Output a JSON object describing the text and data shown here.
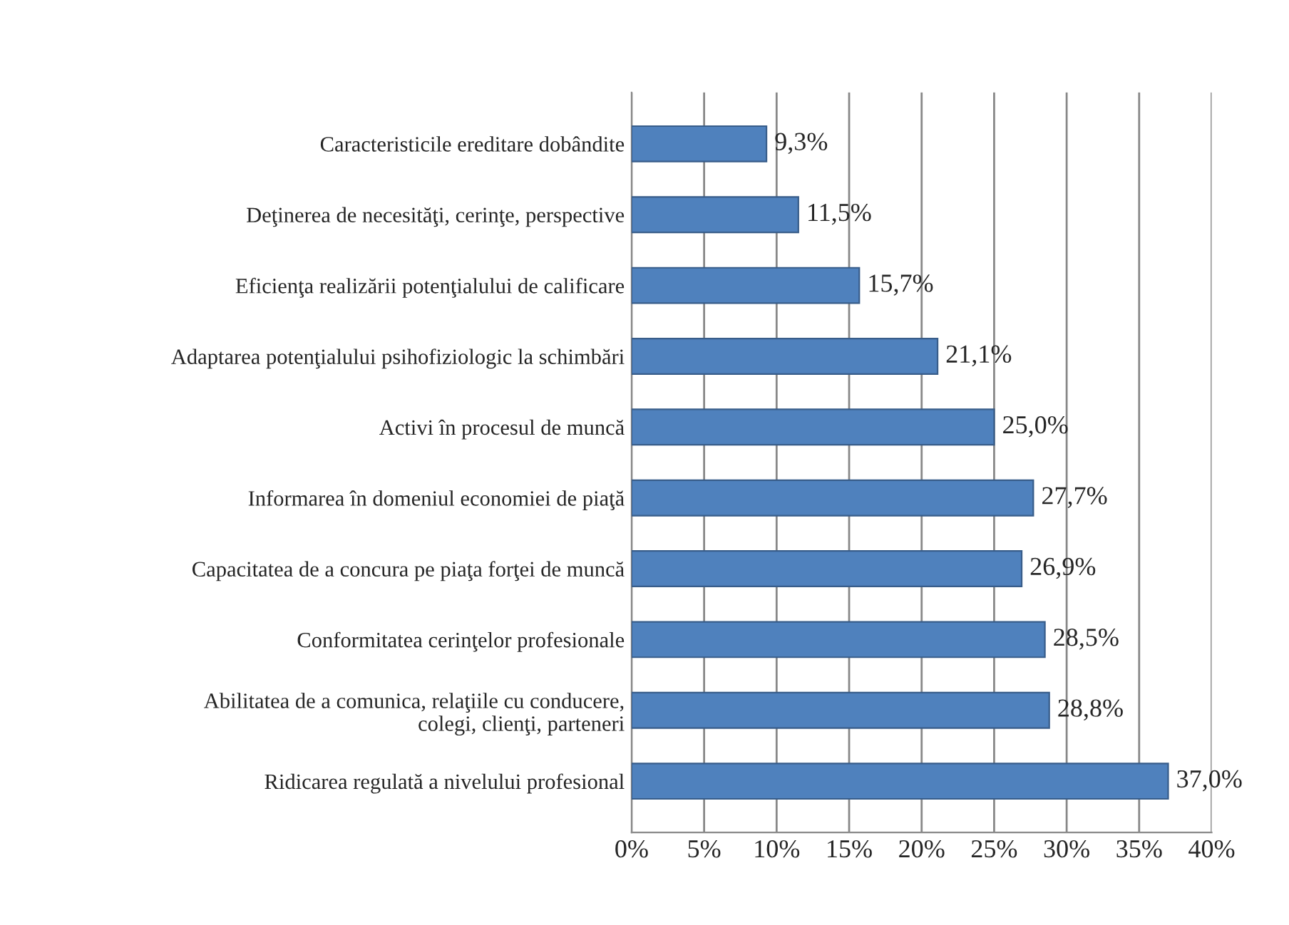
{
  "chart_data": {
    "type": "bar",
    "orientation": "horizontal",
    "categories": [
      "Caracteristicile ereditare dobândite",
      "Deţinerea de necesităţi, cerinţe, perspective",
      "Eficienţa realizării potenţialului de calificare",
      "Adaptarea potenţialului psihofiziologic la schimbări",
      "Activi în procesul de muncă",
      "Informarea în domeniul economiei de piaţă",
      "Capacitatea de a concura pe piaţa forţei de muncă",
      "Conformitatea cerinţelor profesionale",
      "Abilitatea de a comunica, relaţiile cu conducere,\ncolegi, clienţi, parteneri",
      "Ridicarea regulată a nivelului profesional"
    ],
    "values": [
      9.3,
      11.5,
      15.7,
      21.1,
      25.0,
      27.7,
      26.9,
      28.5,
      28.8,
      37.0
    ],
    "value_labels": [
      "9,3%",
      "11,5%",
      "15,7%",
      "21,1%",
      "25,0%",
      "27,7%",
      "26,9%",
      "28,5%",
      "28,8%",
      "37,0%"
    ],
    "color": "#4f81bd",
    "xlim": [
      0,
      40
    ],
    "xticks": [
      {
        "value": 0,
        "label": "0%"
      },
      {
        "value": 5,
        "label": "5%"
      },
      {
        "value": 10,
        "label": "10%"
      },
      {
        "value": 15,
        "label": "15%"
      },
      {
        "value": 20,
        "label": "20%"
      },
      {
        "value": 25,
        "label": "25%"
      },
      {
        "value": 30,
        "label": "30%"
      },
      {
        "value": 35,
        "label": "35%"
      },
      {
        "value": 40,
        "label": "40%"
      }
    ],
    "grid": "x",
    "legend": false
  }
}
